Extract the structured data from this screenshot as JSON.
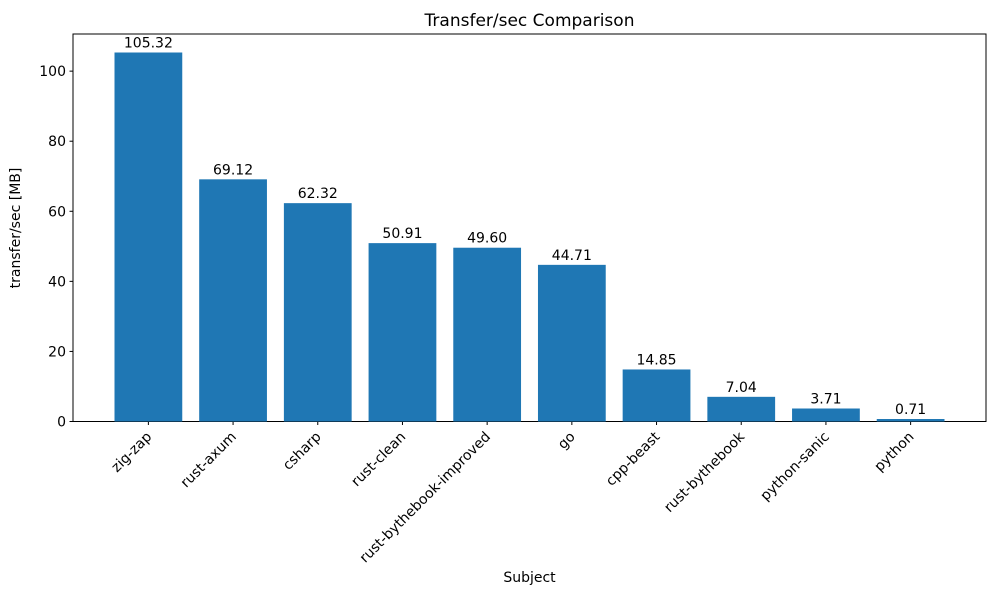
{
  "chart_data": {
    "type": "bar",
    "title": "Transfer/sec Comparison",
    "xlabel": "Subject",
    "ylabel": "transfer/sec [MB]",
    "categories": [
      "zig-zap",
      "rust-axum",
      "csharp",
      "rust-clean",
      "rust-bythebook-improved",
      "go",
      "cpp-beast",
      "rust-bythebook",
      "python-sanic",
      "python"
    ],
    "values": [
      105.32,
      69.12,
      62.32,
      50.91,
      49.6,
      44.71,
      14.85,
      7.04,
      3.71,
      0.71
    ],
    "value_labels": [
      "105.32",
      "69.12",
      "62.32",
      "50.91",
      "49.60",
      "44.71",
      "14.85",
      "7.04",
      "3.71",
      "0.71"
    ],
    "yticks": [
      0,
      20,
      40,
      60,
      80,
      100
    ],
    "ylim": [
      0,
      110.6
    ],
    "xtick_rotation_deg": 45,
    "grid": false,
    "legend": null,
    "bar_color": "#1f77b4",
    "axis_color": "#000000",
    "text_color": "#000000",
    "background_color": "#ffffff"
  }
}
